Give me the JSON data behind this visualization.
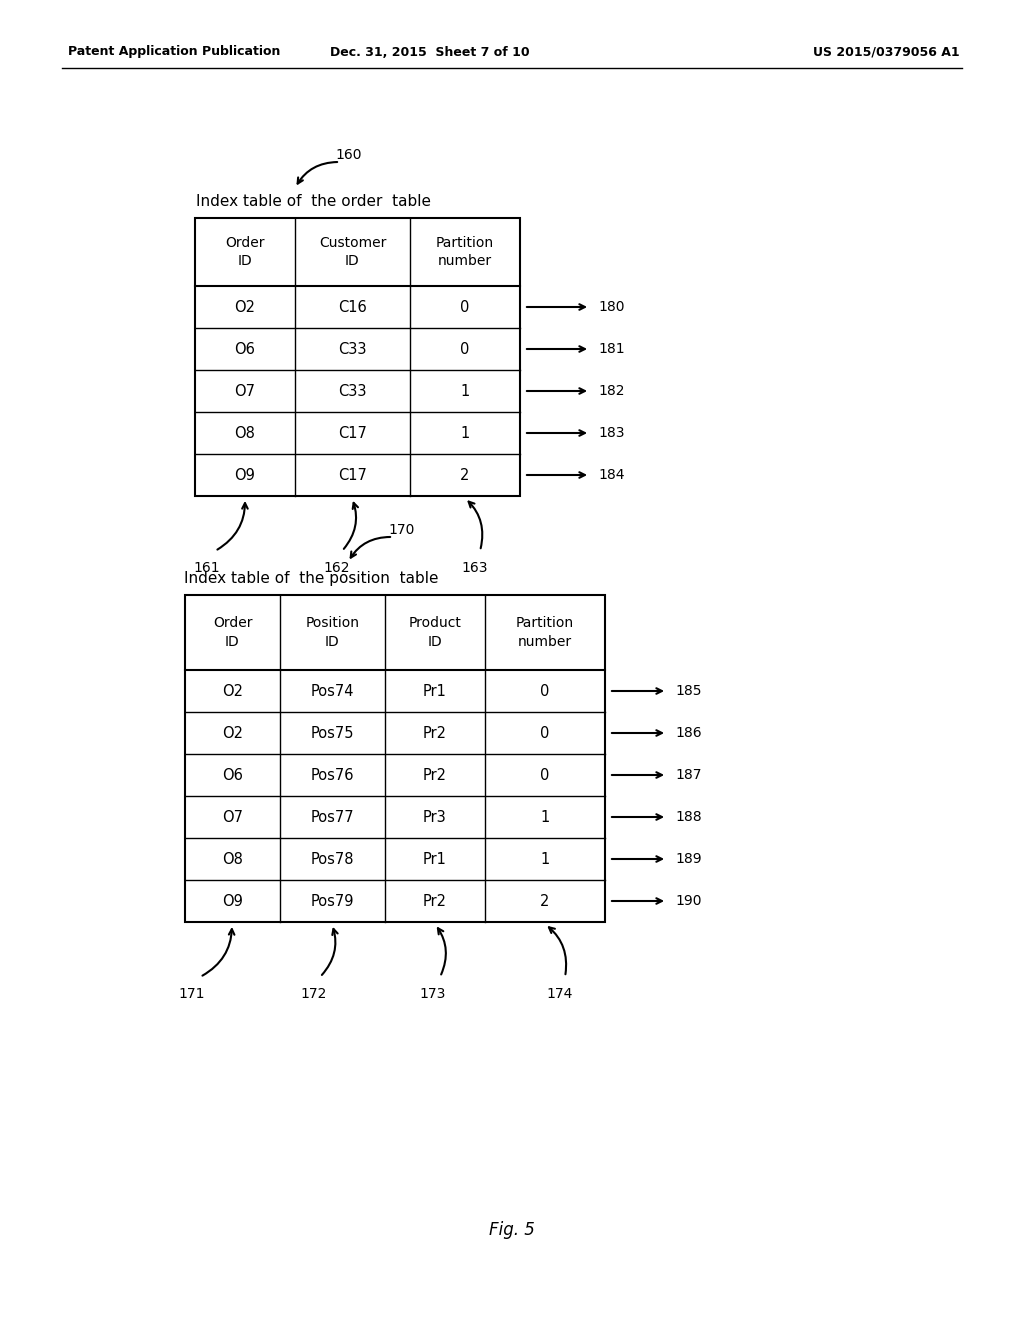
{
  "bg_color": "#ffffff",
  "header_text": {
    "left": "Patent Application Publication",
    "center": "Dec. 31, 2015  Sheet 7 of 10",
    "right": "US 2015/0379056 A1"
  },
  "table1": {
    "label": "160",
    "title": "Index table of  the order  table",
    "headers": [
      "Order\nID",
      "Customer\nID",
      "Partition\nnumber"
    ],
    "rows": [
      [
        "O2",
        "C16",
        "0"
      ],
      [
        "O6",
        "C33",
        "0"
      ],
      [
        "O7",
        "C33",
        "1"
      ],
      [
        "O8",
        "C17",
        "1"
      ],
      [
        "O9",
        "C17",
        "2"
      ]
    ],
    "row_labels": [
      "180",
      "181",
      "182",
      "183",
      "184"
    ],
    "col_labels": [
      "161",
      "162",
      "163"
    ]
  },
  "table2": {
    "label": "170",
    "title": "Index table of  the position  table",
    "headers": [
      "Order\nID",
      "Position\nID",
      "Product\nID",
      "Partition\nnumber"
    ],
    "rows": [
      [
        "O2",
        "Pos74",
        "Pr1",
        "0"
      ],
      [
        "O2",
        "Pos75",
        "Pr2",
        "0"
      ],
      [
        "O6",
        "Pos76",
        "Pr2",
        "0"
      ],
      [
        "O7",
        "Pos77",
        "Pr3",
        "1"
      ],
      [
        "O8",
        "Pos78",
        "Pr1",
        "1"
      ],
      [
        "O9",
        "Pos79",
        "Pr2",
        "2"
      ]
    ],
    "row_labels": [
      "185",
      "186",
      "187",
      "188",
      "189",
      "190"
    ],
    "col_labels": [
      "171",
      "172",
      "173",
      "174"
    ]
  },
  "fig_label": "Fig. 5"
}
